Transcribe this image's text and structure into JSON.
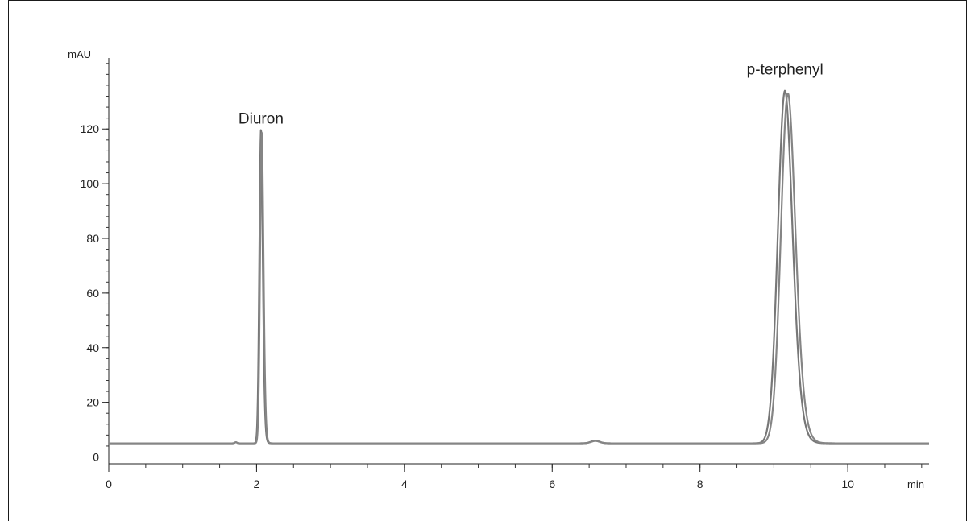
{
  "chart_data": {
    "type": "line",
    "title": "",
    "xlabel": "min",
    "ylabel": "mAU",
    "xlim": [
      0,
      11.1
    ],
    "ylim": [
      -2.5,
      146
    ],
    "grid": false,
    "x_major_ticks": [
      0,
      2,
      4,
      6,
      8,
      10
    ],
    "x_major_tick_labels": [
      "0",
      "2",
      "4",
      "6",
      "8",
      "10"
    ],
    "x_minor_step": 0.5,
    "y_major_ticks": [
      0,
      20,
      40,
      60,
      80,
      100,
      120
    ],
    "y_major_tick_labels": [
      "0",
      "20",
      "40",
      "60",
      "80",
      "100",
      "120"
    ],
    "y_minor_step": 4,
    "baseline": 5,
    "series": [
      {
        "color": "#777777",
        "baseline": 5,
        "peaks": [
          {
            "rt": 1.72,
            "height": 0.4,
            "sigma": 0.015,
            "tail": 0.0
          },
          {
            "rt": 2.06,
            "height": 115,
            "sigma": 0.022,
            "tail": 0.07
          },
          {
            "rt": 6.58,
            "height": 0.9,
            "sigma": 0.06,
            "tail": 0.0
          },
          {
            "rt": 9.15,
            "height": 129,
            "sigma": 0.095,
            "tail": 0.07
          }
        ]
      },
      {
        "color": "#858585",
        "baseline": 5,
        "peaks": [
          {
            "rt": 1.72,
            "height": 0.4,
            "sigma": 0.015,
            "tail": 0.0
          },
          {
            "rt": 2.07,
            "height": 114,
            "sigma": 0.022,
            "tail": 0.07
          },
          {
            "rt": 6.59,
            "height": 0.9,
            "sigma": 0.06,
            "tail": 0.0
          },
          {
            "rt": 9.19,
            "height": 128,
            "sigma": 0.095,
            "tail": 0.07
          }
        ]
      }
    ],
    "annotations": [
      {
        "text": "Diuron",
        "x": 2.06,
        "y": 122
      },
      {
        "text": "p-terphenyl",
        "x": 9.15,
        "y": 140
      }
    ]
  }
}
